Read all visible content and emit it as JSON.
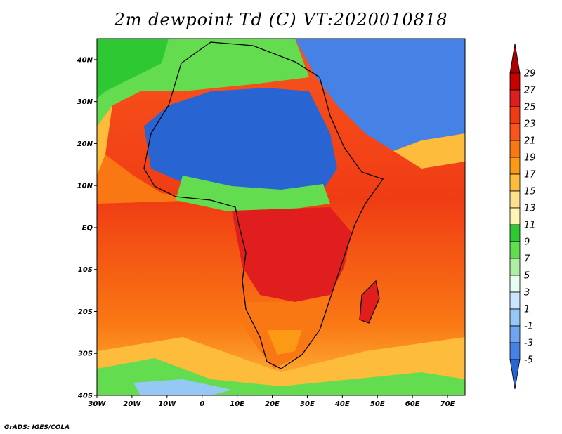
{
  "title": "2m dewpoint Td (C) VT:2020010818",
  "credit": "GrADS: IGES/COLA",
  "map": {
    "lon_range": [
      -30,
      75
    ],
    "lat_range": [
      -40,
      45
    ],
    "lat_ticks": [
      {
        "value": 40,
        "label": "40N"
      },
      {
        "value": 30,
        "label": "30N"
      },
      {
        "value": 20,
        "label": "20N"
      },
      {
        "value": 10,
        "label": "10N"
      },
      {
        "value": 0,
        "label": "EQ"
      },
      {
        "value": -10,
        "label": "10S"
      },
      {
        "value": -20,
        "label": "20S"
      },
      {
        "value": -30,
        "label": "30S"
      },
      {
        "value": -40,
        "label": "40S"
      }
    ],
    "lon_ticks": [
      {
        "value": -30,
        "label": "30W"
      },
      {
        "value": -20,
        "label": "20W"
      },
      {
        "value": -10,
        "label": "10W"
      },
      {
        "value": 0,
        "label": "0"
      },
      {
        "value": 10,
        "label": "10E"
      },
      {
        "value": 20,
        "label": "20E"
      },
      {
        "value": 30,
        "label": "30E"
      },
      {
        "value": 40,
        "label": "40E"
      },
      {
        "value": 50,
        "label": "50E"
      },
      {
        "value": 60,
        "label": "60E"
      },
      {
        "value": 70,
        "label": "70E"
      }
    ]
  },
  "colorbar": {
    "labels": [
      "29",
      "27",
      "25",
      "23",
      "21",
      "19",
      "17",
      "15",
      "13",
      "11",
      "9",
      "7",
      "5",
      "3",
      "1",
      "-1",
      "-3",
      "-5"
    ],
    "colors": [
      "#aa0000",
      "#c80000",
      "#e11e1e",
      "#f03c14",
      "#f8551e",
      "#fa7814",
      "#fc9a16",
      "#fdbc3c",
      "#fde08c",
      "#fdf5b4",
      "#2dc832",
      "#64dc50",
      "#aaf0a0",
      "#e6fff0",
      "#c8e6ff",
      "#96c8f5",
      "#6ea5f0",
      "#4682e6",
      "#2864d2"
    ]
  }
}
